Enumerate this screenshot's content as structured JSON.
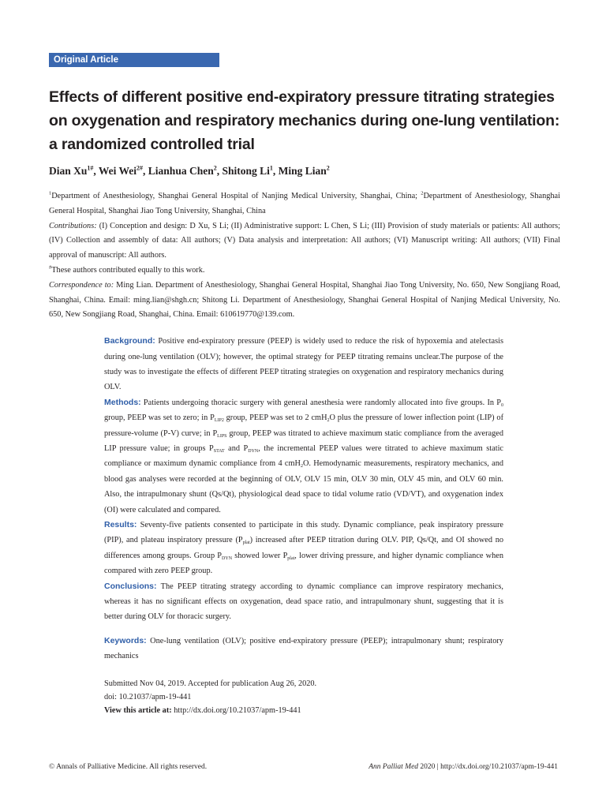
{
  "badge": "Original Article",
  "title": "Effects of different positive end-expiratory pressure titrating strategies on oxygenation and respiratory mechanics during one-lung ventilation: a randomized controlled trial",
  "authors": [
    {
      "name": "Dian Xu",
      "sup": "1#"
    },
    {
      "name": "Wei Wei",
      "sup": "2#"
    },
    {
      "name": "Lianhua Chen",
      "sup": "2"
    },
    {
      "name": "Shitong Li",
      "sup": "1"
    },
    {
      "name": "Ming Lian",
      "sup": "2"
    }
  ],
  "affiliations": {
    "sup1": "1",
    "aff1": "Department of Anesthesiology, Shanghai General Hospital of Nanjing Medical University, Shanghai, China; ",
    "sup2": "2",
    "aff2": "Department of Anesthesiology, Shanghai General Hospital, Shanghai Jiao Tong University, Shanghai, China",
    "contrib_label": "Contributions:",
    "contrib": " (I) Conception and design: D Xu, S Li; (II) Administrative support: L Chen, S Li; (III) Provision of study materials or patients: All authors; (IV) Collection and assembly of data: All authors; (V) Data analysis and interpretation: All authors; (VI) Manuscript writing: All authors; (VII) Final approval of manuscript: All authors.",
    "equal_sup": "#",
    "equal": "These authors contributed equally to this work.",
    "corr_label": "Correspondence to:",
    "corr": " Ming Lian. Department of Anesthesiology, Shanghai General Hospital, Shanghai Jiao Tong University, No. 650, New Songjiang Road, Shanghai, China. Email: ming.lian@shgh.cn; Shitong Li. Department of Anesthesiology, Shanghai General Hospital of Nanjing Medical University, No. 650, New Songjiang Road, Shanghai, China. Email: 610619770@139.com."
  },
  "abstract": {
    "background": {
      "label": "Background:",
      "text": [
        " Positive end-expiratory pressure (PEEP) is widely used to reduce the risk of hypoxemia and atelectasis during one-lung ventilation (OLV); however, the optimal strategy for PEEP titrating remains unclear.The purpose of the study was to investigate the effects of different PEEP titrating strategies on oxygenation and respiratory mechanics during OLV."
      ]
    },
    "methods": {
      "label": "Methods:",
      "text": [
        " Patients undergoing thoracic surgery with general anesthesia were randomly allocated into five groups. In P",
        {
          "sub": "0"
        },
        " group, PEEP was set to zero; in P",
        {
          "sub": "LIP2"
        },
        " group, PEEP was set to 2 cmH",
        {
          "sub": "2"
        },
        "O plus the pressure of lower inflection point (LIP) of pressure-volume (P-V) curve; in P",
        {
          "sub": "LIPS"
        },
        " group, PEEP was titrated to achieve maximum static compliance from the averaged LIP pressure value; in groups P",
        {
          "sub": "STAT"
        },
        " and P",
        {
          "sub": "DYN"
        },
        ", the incremental PEEP values were titrated to achieve maximum static compliance or maximum dynamic compliance from 4 cmH",
        {
          "sub": "2"
        },
        "O. Hemodynamic measurements, respiratory mechanics, and blood gas analyses were recorded at the beginning of OLV, OLV 15 min, OLV 30 min, OLV 45 min, and OLV 60 min. Also, the intrapulmonary shunt (Qs/Qt), physiological dead space to tidal volume ratio (VD/VT), and oxygenation index (OI) were calculated and compared."
      ]
    },
    "results": {
      "label": "Results:",
      "text": [
        " Seventy-five patients consented to participate in this study. Dynamic compliance, peak inspiratory pressure (PIP), and plateau inspiratory pressure (P",
        {
          "sub": "plat"
        },
        ") increased after PEEP titration during OLV. PIP, Qs/Qt, and OI showed no differences among groups. Group P",
        {
          "sub": "DYN"
        },
        " showed lower P",
        {
          "sub": "plat"
        },
        ", lower driving pressure, and higher dynamic compliance when compared with zero PEEP group."
      ]
    },
    "conclusions": {
      "label": "Conclusions:",
      "text": [
        " The PEEP titrating strategy according to dynamic compliance can improve respiratory mechanics, whereas it has no significant effects on oxygenation, dead space ratio, and intrapulmonary shunt, suggesting that it is better during OLV for thoracic surgery."
      ]
    },
    "keywords": {
      "label": "Keywords:",
      "text": [
        " One-lung ventilation (OLV); positive end-expiratory pressure (PEEP); intrapulmonary shunt; respiratory mechanics"
      ]
    }
  },
  "submission": {
    "dates": "Submitted Nov 04, 2019. Accepted for publication Aug 26, 2020.",
    "doi": "doi: 10.21037/apm-19-441",
    "view_label": "View this article at:",
    "view_url": " http://dx.doi.org/10.21037/apm-19-441"
  },
  "footer": {
    "left": "© Annals of Palliative Medicine. All rights reserved.",
    "journal": "Ann Palliat Med",
    "right": " 2020 | http://dx.doi.org/10.21037/apm-19-441"
  },
  "colors": {
    "accent": "#3a68b0",
    "label": "#2f5ea8"
  }
}
